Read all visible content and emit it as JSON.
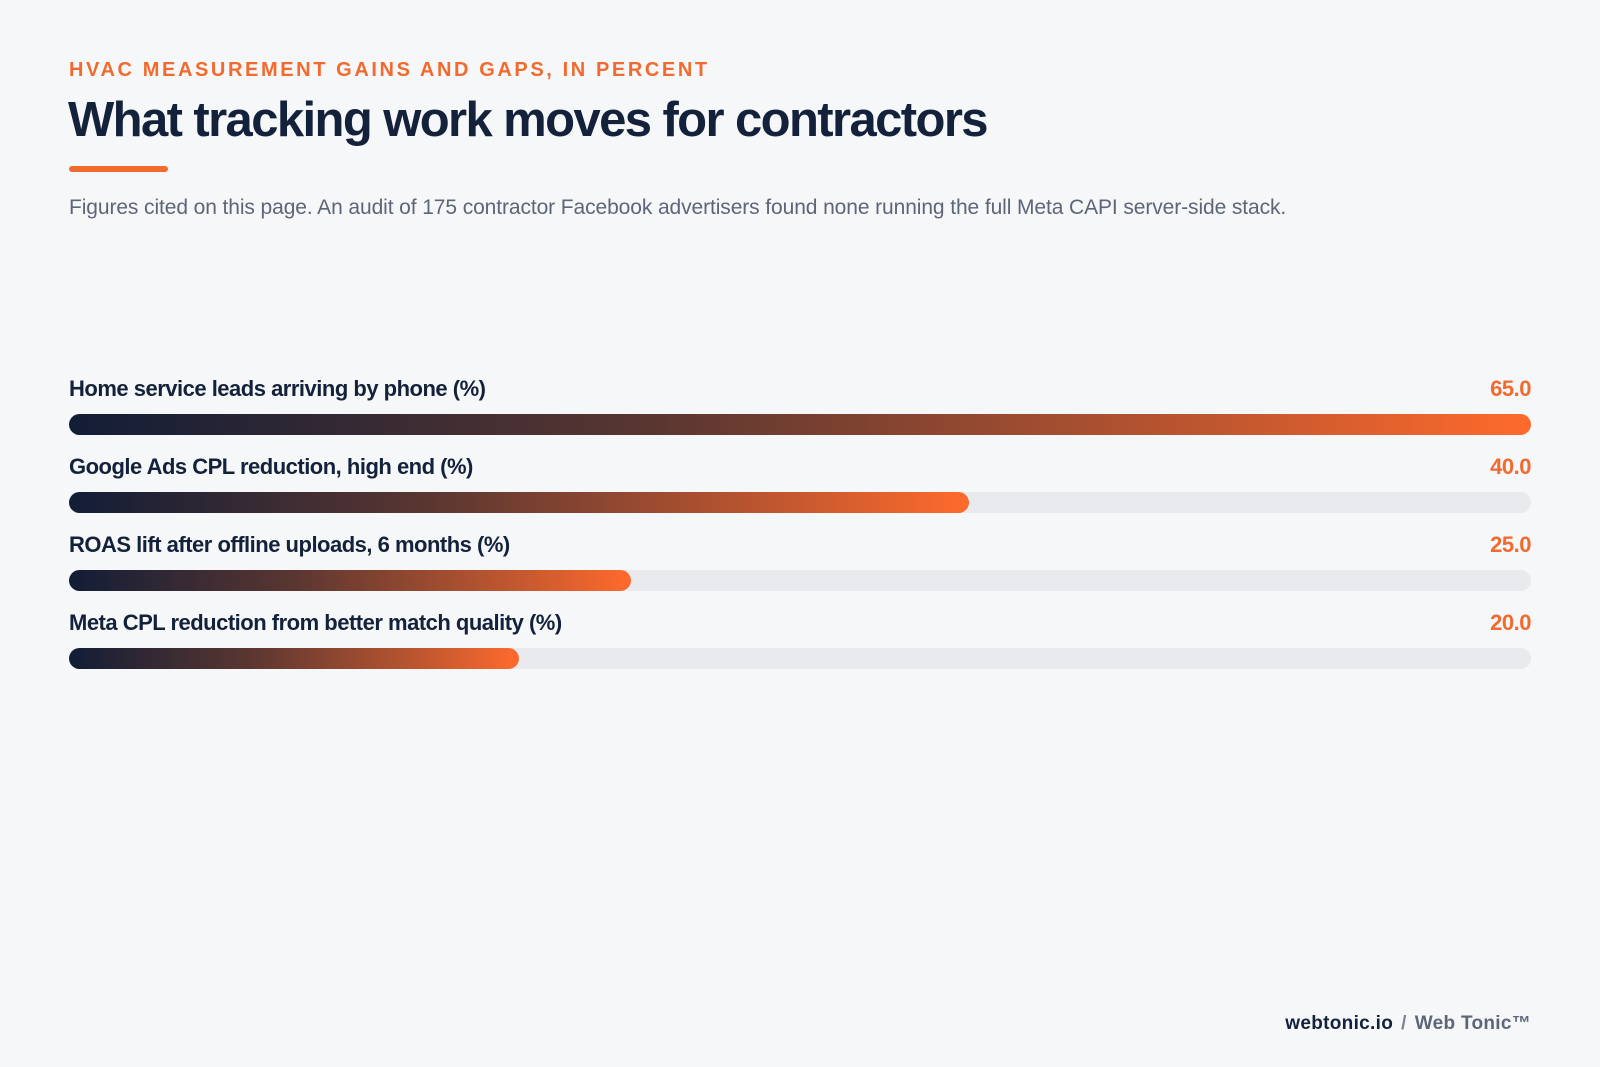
{
  "header": {
    "eyebrow": "HVAC MEASUREMENT GAINS AND GAPS, IN PERCENT",
    "title": "What tracking work moves for contractors",
    "subtitle": "Figures cited on this page. An audit of 175 contractor Facebook advertisers found none running the full Meta CAPI server-side stack."
  },
  "colors": {
    "accent": "#f26a2e",
    "navy": "#14213a",
    "track": "#e8eaee",
    "gradient_start": "#121d36",
    "gradient_end": "#ff6a2c"
  },
  "chart_data": {
    "type": "bar",
    "orientation": "horizontal",
    "categories": [
      "Home service leads arriving by phone (%)",
      "Google Ads CPL reduction, high end (%)",
      "ROAS lift after offline uploads, 6 months (%)",
      "Meta CPL reduction from better match quality (%)"
    ],
    "values": [
      65.0,
      40.0,
      25.0,
      20.0
    ],
    "value_labels": [
      "65.0",
      "40.0",
      "25.0",
      "20.0"
    ],
    "xlim": [
      0,
      65
    ],
    "grid": false,
    "legend": "none"
  },
  "footer": {
    "domain": "webtonic.io",
    "separator": "/",
    "brand": "Web Tonic™"
  }
}
